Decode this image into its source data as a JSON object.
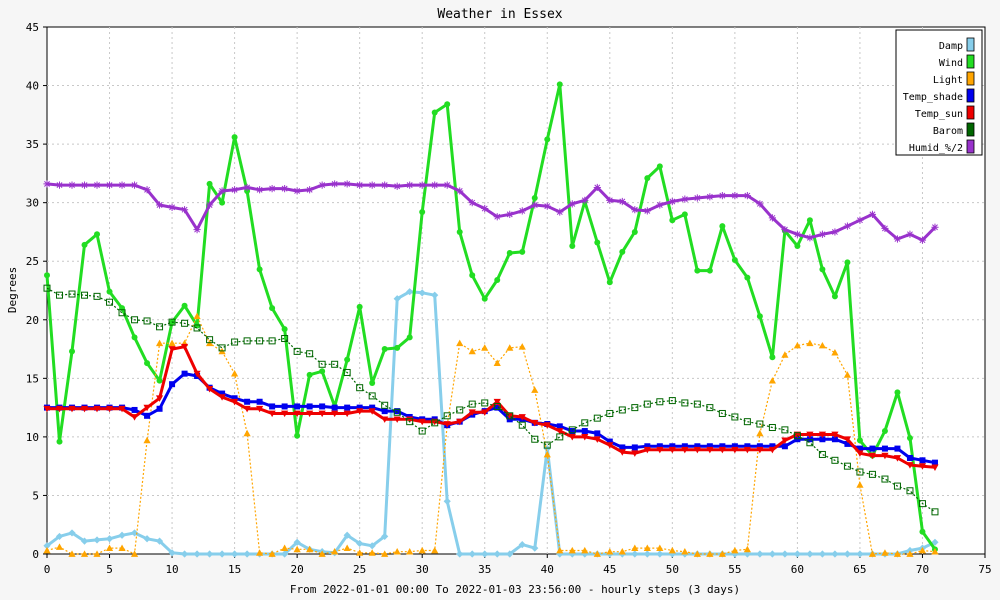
{
  "chart_data": {
    "type": "line",
    "title": "Weather in Essex",
    "xlabel": "From 2022-01-01 00:00 To 2022-01-03 23:56:00 - hourly steps (3 days)",
    "ylabel": "Degrees",
    "xlim": [
      0,
      75
    ],
    "ylim": [
      0,
      45
    ],
    "xticks": [
      0,
      5,
      10,
      15,
      20,
      25,
      30,
      35,
      40,
      45,
      50,
      55,
      60,
      65,
      70,
      75
    ],
    "yticks": [
      0,
      5,
      10,
      15,
      20,
      25,
      30,
      35,
      40,
      45
    ],
    "grid": true,
    "legend_position": "top-right",
    "x": [
      0,
      1,
      2,
      3,
      4,
      5,
      6,
      7,
      8,
      9,
      10,
      11,
      12,
      13,
      14,
      15,
      16,
      17,
      18,
      19,
      20,
      21,
      22,
      23,
      24,
      25,
      26,
      27,
      28,
      29,
      30,
      31,
      32,
      33,
      34,
      35,
      36,
      37,
      38,
      39,
      40,
      41,
      42,
      43,
      44,
      45,
      46,
      47,
      48,
      49,
      50,
      51,
      52,
      53,
      54,
      55,
      56,
      57,
      58,
      59,
      60,
      61,
      62,
      63,
      64,
      65,
      66,
      67,
      68,
      69,
      70,
      71
    ],
    "series": [
      {
        "name": "Damp",
        "color": "#87ceeb",
        "marker": "diamond",
        "style": "solid",
        "values": [
          0.7,
          1.5,
          1.8,
          1.1,
          1.2,
          1.3,
          1.6,
          1.8,
          1.3,
          1.1,
          0.1,
          0,
          0,
          0,
          0,
          0,
          0,
          0,
          0,
          0,
          1.0,
          0.4,
          0.2,
          0.1,
          1.6,
          0.9,
          0.7,
          1.5,
          21.8,
          22.4,
          22.3,
          22.1,
          4.5,
          0,
          0,
          0,
          0,
          0,
          0.8,
          0.5,
          9.0,
          0,
          0,
          0,
          0,
          0,
          0,
          0,
          0,
          0,
          0,
          0,
          0,
          0,
          0,
          0,
          0,
          0,
          0,
          0,
          0,
          0,
          0,
          0,
          0,
          0,
          0,
          0,
          0,
          0.3,
          0.5,
          1.0
        ]
      },
      {
        "name": "Wind",
        "color": "#22dd22",
        "marker": "circle",
        "style": "solid",
        "values": [
          23.8,
          9.6,
          17.3,
          26.4,
          27.3,
          22.4,
          21.0,
          18.5,
          16.3,
          14.8,
          19.8,
          21.2,
          19.5,
          31.6,
          30.0,
          35.6,
          31.0,
          24.3,
          21.0,
          19.2,
          10.1,
          15.3,
          15.6,
          12.6,
          16.6,
          21.1,
          14.6,
          17.5,
          17.6,
          18.5,
          29.2,
          37.7,
          38.4,
          27.5,
          23.8,
          21.8,
          23.4,
          25.7,
          25.8,
          30.4,
          35.4,
          40.1,
          26.3,
          30.1,
          26.6,
          23.2,
          25.8,
          27.5,
          32.1,
          33.1,
          28.5,
          29.0,
          24.2,
          24.2,
          28.0,
          25.1,
          23.6,
          20.3,
          16.8,
          27.6,
          26.3,
          28.5,
          24.3,
          22.0,
          24.9,
          9.7,
          8.4,
          10.5,
          13.8,
          9.9,
          1.9,
          0.4
        ]
      },
      {
        "name": "Light",
        "color": "#ffa500",
        "marker": "triangle",
        "style": "dotted",
        "values": [
          0.3,
          0.6,
          0,
          0,
          0,
          0.5,
          0.5,
          0,
          9.7,
          18.0,
          18.0,
          18.0,
          20.3,
          18.0,
          17.3,
          15.4,
          10.3,
          0.1,
          0,
          0.5,
          0.4,
          0.4,
          0,
          0.2,
          0.5,
          0.1,
          0.1,
          0,
          0.2,
          0.2,
          0.3,
          0.3,
          11.0,
          18.0,
          17.3,
          17.6,
          16.3,
          17.6,
          17.7,
          14.0,
          8.5,
          0.3,
          0.3,
          0.3,
          0,
          0.2,
          0.2,
          0.5,
          0.5,
          0.5,
          0.3,
          0.2,
          0,
          0,
          0,
          0.3,
          0.4,
          10.3,
          14.8,
          17.0,
          17.8,
          18.0,
          17.8,
          17.2,
          15.3,
          5.9,
          0,
          0.1,
          0,
          0,
          0.3,
          0.2
        ]
      },
      {
        "name": "Temp_shade",
        "color": "#0000ee",
        "marker": "square",
        "style": "solid",
        "values": [
          12.5,
          12.5,
          12.5,
          12.5,
          12.5,
          12.5,
          12.5,
          12.3,
          11.8,
          12.4,
          14.5,
          15.4,
          15.2,
          14.2,
          13.7,
          13.3,
          13.0,
          13.0,
          12.6,
          12.6,
          12.6,
          12.6,
          12.6,
          12.5,
          12.5,
          12.5,
          12.5,
          12.2,
          12.2,
          11.7,
          11.5,
          11.5,
          11.0,
          11.3,
          11.9,
          12.2,
          12.5,
          11.5,
          11.5,
          11.2,
          11.1,
          10.9,
          10.5,
          10.5,
          10.3,
          9.6,
          9.1,
          9.1,
          9.2,
          9.2,
          9.2,
          9.2,
          9.2,
          9.2,
          9.2,
          9.2,
          9.2,
          9.2,
          9.2,
          9.2,
          9.8,
          9.8,
          9.8,
          9.8,
          9.4,
          9.0,
          9.0,
          9.0,
          9.0,
          8.2,
          8.0,
          7.8
        ]
      },
      {
        "name": "Temp_sun",
        "color": "#ee0000",
        "marker": "triangle-down",
        "style": "solid",
        "values": [
          12.4,
          12.4,
          12.4,
          12.4,
          12.4,
          12.4,
          12.4,
          11.7,
          12.5,
          13.3,
          17.5,
          17.7,
          15.4,
          14.1,
          13.4,
          13.0,
          12.4,
          12.4,
          12.0,
          12.0,
          12.0,
          12.0,
          12.0,
          12.0,
          12.0,
          12.2,
          12.2,
          11.5,
          11.5,
          11.5,
          11.3,
          11.3,
          11.1,
          11.3,
          12.1,
          12.1,
          13.0,
          11.8,
          11.7,
          11.2,
          11.0,
          10.5,
          10.0,
          10.0,
          9.8,
          9.3,
          8.7,
          8.6,
          8.9,
          8.9,
          8.9,
          8.9,
          8.9,
          8.9,
          8.9,
          8.9,
          8.9,
          8.9,
          8.9,
          9.7,
          10.2,
          10.2,
          10.2,
          10.2,
          9.8,
          8.6,
          8.4,
          8.4,
          8.2,
          7.6,
          7.5,
          7.4
        ]
      },
      {
        "name": "Barom",
        "color": "#006600",
        "marker": "open-square",
        "style": "dotted",
        "values": [
          22.7,
          22.1,
          22.2,
          22.1,
          22.0,
          21.5,
          20.6,
          20.0,
          19.9,
          19.4,
          19.8,
          19.7,
          19.3,
          18.3,
          17.6,
          18.1,
          18.2,
          18.2,
          18.2,
          18.4,
          17.3,
          17.1,
          16.2,
          16.2,
          15.5,
          14.2,
          13.5,
          12.7,
          12.1,
          11.3,
          10.5,
          11.2,
          11.8,
          12.3,
          12.8,
          12.9,
          12.6,
          11.8,
          11.0,
          9.8,
          9.3,
          10.0,
          10.6,
          11.2,
          11.6,
          12.0,
          12.3,
          12.5,
          12.8,
          13.0,
          13.1,
          12.9,
          12.8,
          12.5,
          12.0,
          11.7,
          11.3,
          11.1,
          10.8,
          10.6,
          10.1,
          9.5,
          8.5,
          8.0,
          7.5,
          7.0,
          6.8,
          6.4,
          5.8,
          5.4,
          4.3,
          3.6
        ]
      },
      {
        "name": "Humid_%/2",
        "color": "#9932cc",
        "marker": "star",
        "style": "solid",
        "values": [
          31.6,
          31.5,
          31.5,
          31.5,
          31.5,
          31.5,
          31.5,
          31.5,
          31.1,
          29.8,
          29.6,
          29.4,
          27.7,
          29.8,
          31.0,
          31.1,
          31.3,
          31.1,
          31.2,
          31.2,
          31.0,
          31.1,
          31.5,
          31.6,
          31.6,
          31.5,
          31.5,
          31.5,
          31.4,
          31.5,
          31.5,
          31.5,
          31.5,
          31.0,
          30.0,
          29.5,
          28.8,
          29.0,
          29.3,
          29.8,
          29.7,
          29.2,
          29.9,
          30.2,
          31.3,
          30.2,
          30.1,
          29.4,
          29.3,
          29.8,
          30.1,
          30.3,
          30.4,
          30.5,
          30.6,
          30.6,
          30.6,
          29.9,
          28.7,
          27.7,
          27.3,
          27.0,
          27.3,
          27.5,
          28.0,
          28.5,
          29.0,
          27.8,
          26.9,
          27.3,
          26.8,
          27.9
        ]
      }
    ]
  }
}
